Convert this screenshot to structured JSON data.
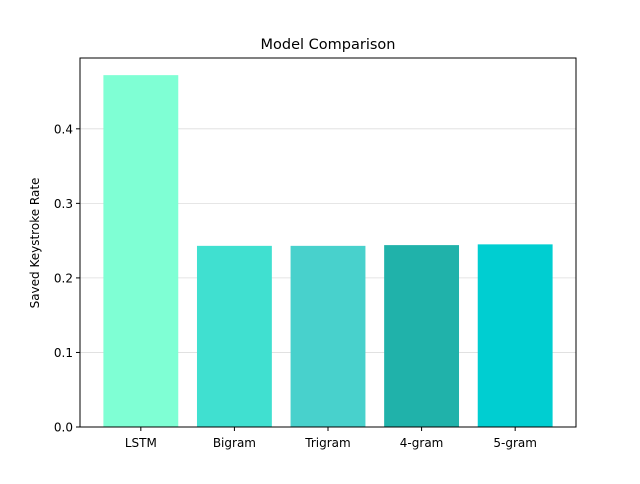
{
  "chart_data": {
    "type": "bar",
    "title": "Model Comparison",
    "xlabel": "",
    "ylabel": "Saved Keystroke Rate",
    "categories": [
      "LSTM",
      "Bigram",
      "Trigram",
      "4-gram",
      "5-gram"
    ],
    "values": [
      0.472,
      0.243,
      0.243,
      0.244,
      0.245
    ],
    "bar_colors": [
      "#7fffd4",
      "#40e0d0",
      "#48d1cc",
      "#20b2aa",
      "#00ced1"
    ],
    "ylim": [
      0,
      0.495
    ],
    "yticks": [
      0.0,
      0.1,
      0.2,
      0.3,
      0.4
    ],
    "ytick_labels": [
      "0.0",
      "0.1",
      "0.2",
      "0.3",
      "0.4"
    ],
    "grid": "y-major",
    "grid_color": "#dddddd"
  }
}
